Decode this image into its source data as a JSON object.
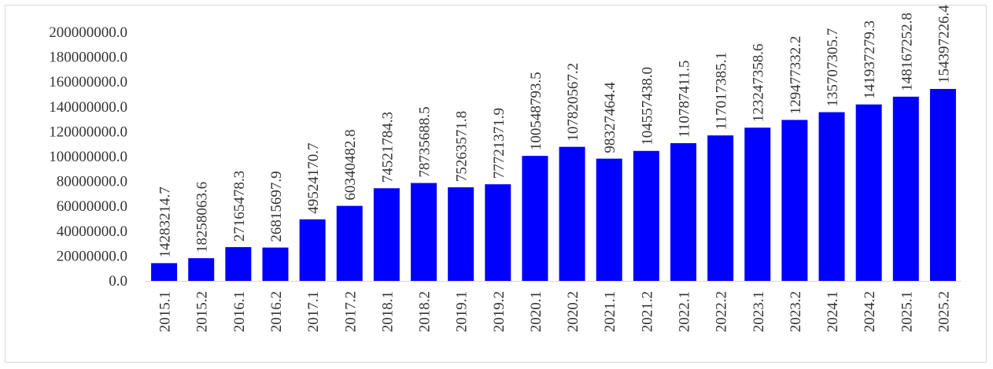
{
  "chart_data": {
    "type": "bar",
    "title": "",
    "xlabel": "",
    "ylabel": "",
    "ylim": [
      0,
      200000000
    ],
    "yticks": [
      "0.0",
      "20000000.0",
      "40000000.0",
      "60000000.0",
      "80000000.0",
      "100000000.0",
      "120000000.0",
      "140000000.0",
      "160000000.0",
      "180000000.0",
      "200000000.0"
    ],
    "ytick_values": [
      0,
      20000000,
      40000000,
      60000000,
      80000000,
      100000000,
      120000000,
      140000000,
      160000000,
      180000000,
      200000000
    ],
    "grid": false,
    "legend": "none",
    "bar_color": "#0000ff",
    "categories": [
      "2015.1",
      "2015.2",
      "2016.1",
      "2016.2",
      "2017.1",
      "2017.2",
      "2018.1",
      "2018.2",
      "2019.1",
      "2019.2",
      "2020.1",
      "2020.2",
      "2021.1",
      "2021.2",
      "2022.1",
      "2022.2",
      "2023.1",
      "2023.2",
      "2024.1",
      "2024.2",
      "2025.1",
      "2025.2"
    ],
    "values": [
      14283214.7,
      18258063.6,
      27165478.3,
      26815697.9,
      49524170.7,
      60340482.8,
      74521784.3,
      78735688.5,
      75263571.8,
      77721371.9,
      100548793.5,
      107820567.2,
      98327464.4,
      104557438.0,
      110787411.5,
      117017385.1,
      123247358.6,
      129477332.2,
      135707305.7,
      141937279.3,
      148167252.8,
      154397226.4
    ],
    "data_labels": [
      "14283214.7",
      "18258063.6",
      "27165478.3",
      "26815697.9",
      "49524170.7",
      "60340482.8",
      "74521784.3",
      "78735688.5",
      "75263571.8",
      "77721371.9",
      "100548793.5",
      "107820567.2",
      "98327464.4",
      "104557438.0",
      "110787411.5",
      "117017385.1",
      "123247358.6",
      "129477332.2",
      "135707305.7",
      "141937279.3",
      "148167252.8",
      "154397226.4"
    ]
  }
}
